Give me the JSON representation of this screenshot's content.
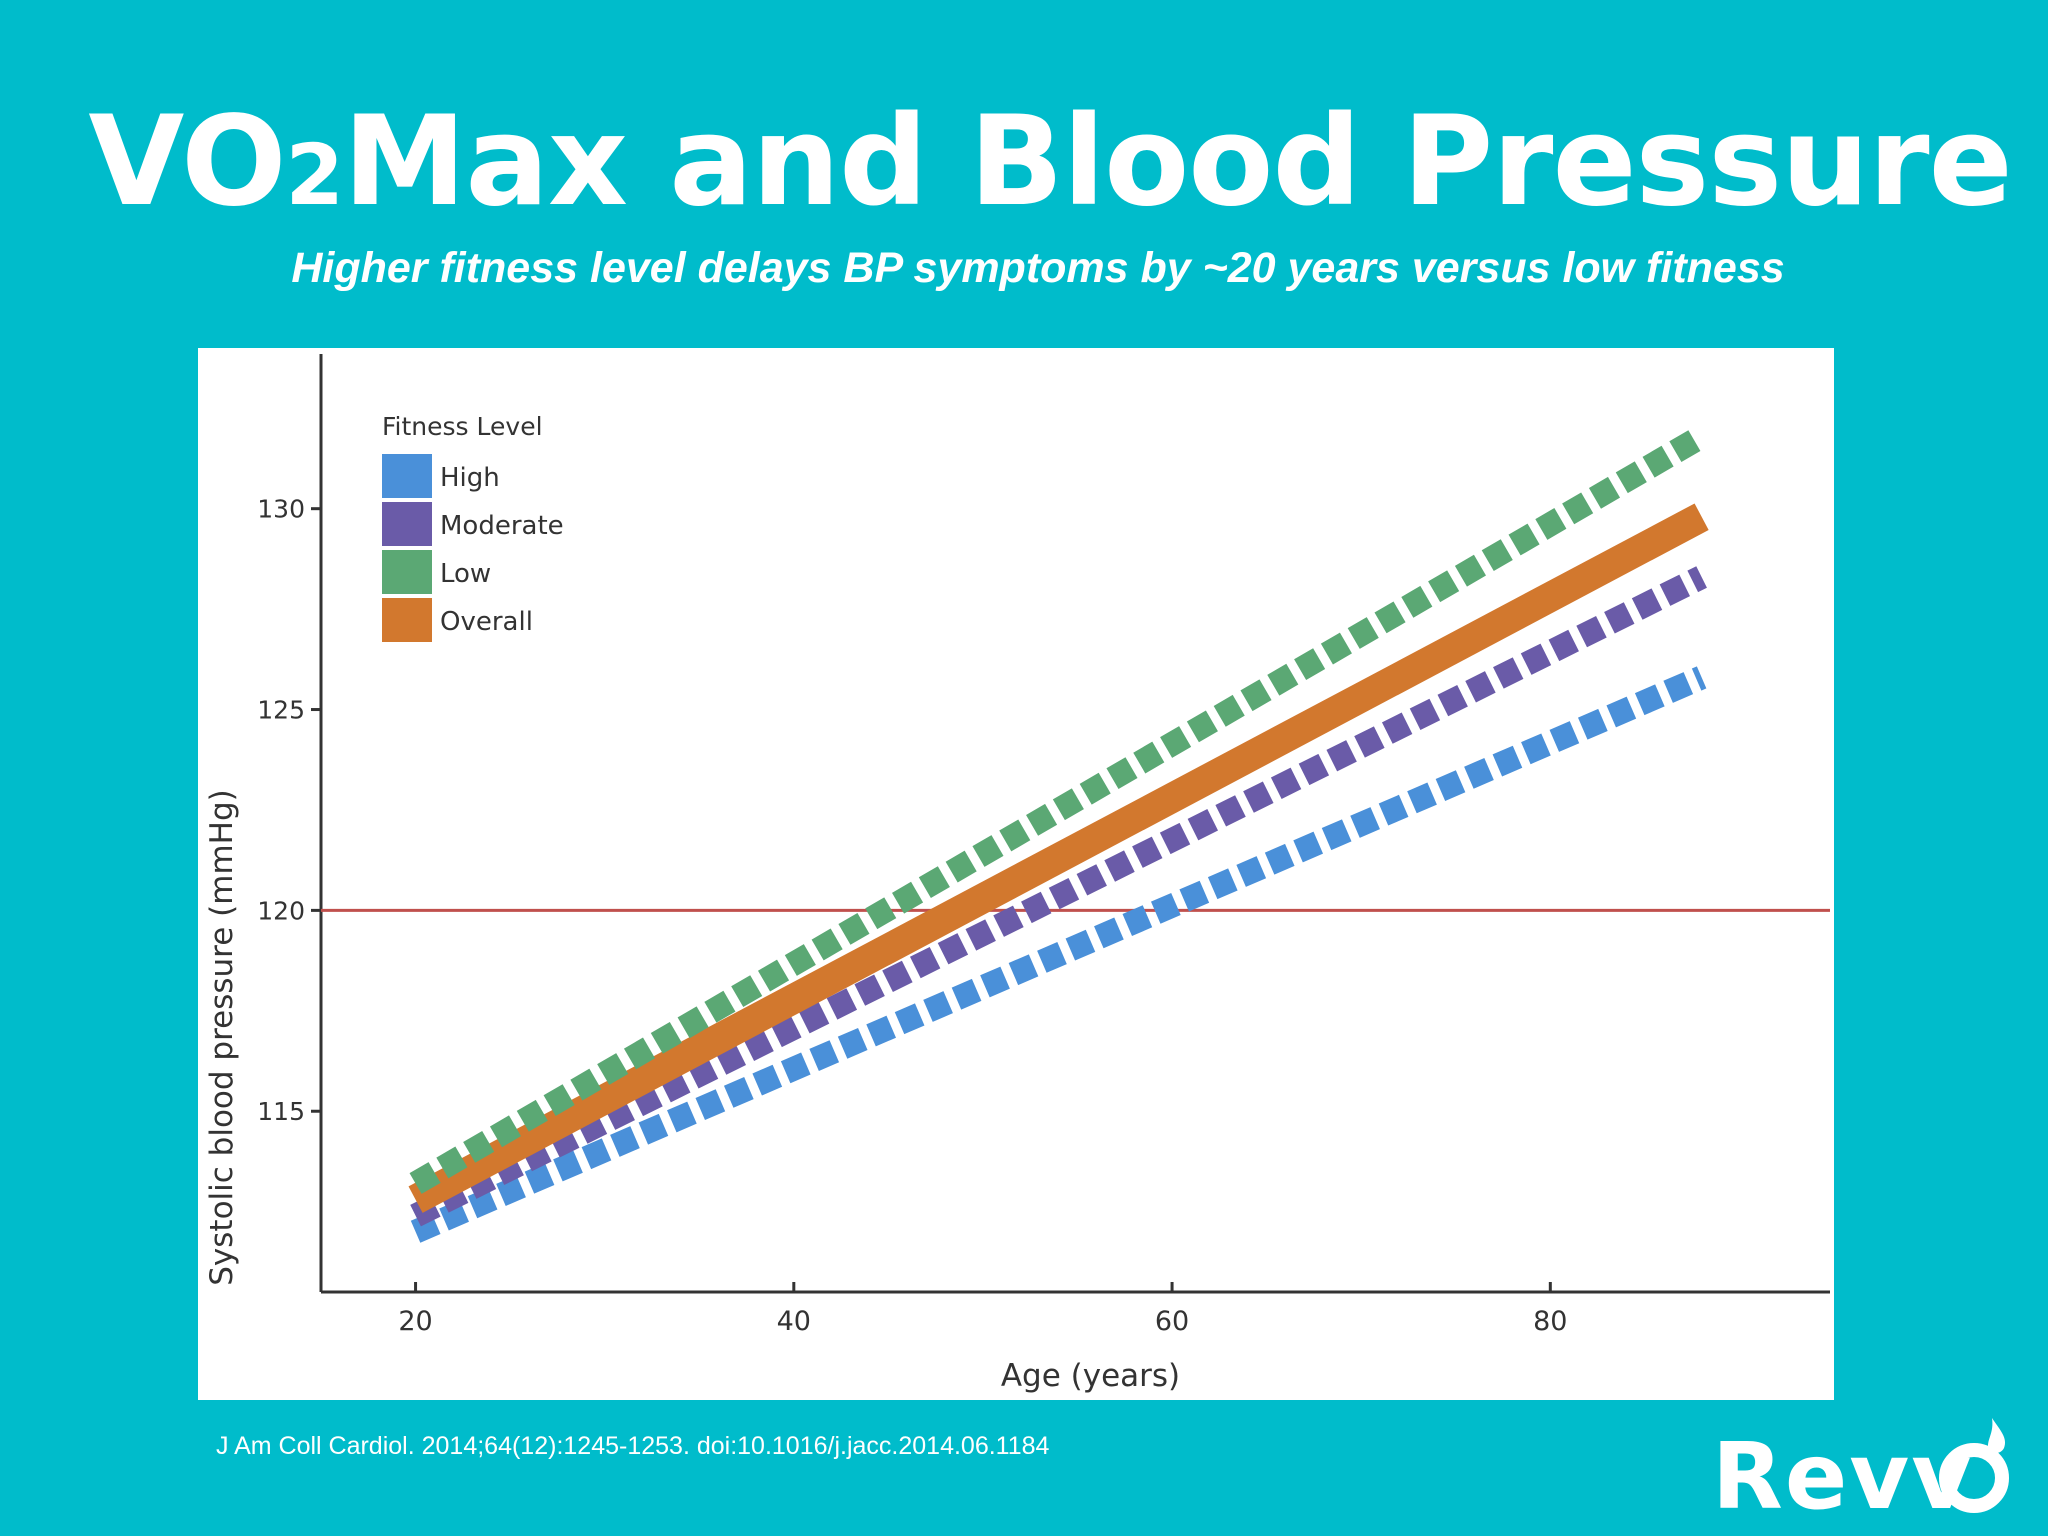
{
  "header": {
    "title_main": "VO",
    "title_sub": "2",
    "title_rest": "Max and Blood Pressure",
    "subtitle": "Higher fitness level delays BP symptoms by ~20 years versus low fitness"
  },
  "chart_data": {
    "type": "line",
    "xlabel": "Age (years)",
    "ylabel": "Systolic blood pressure (mmHg)",
    "xlim": [
      15,
      95
    ],
    "ylim": [
      110.5,
      134
    ],
    "xticks": [
      20,
      40,
      60,
      80
    ],
    "yticks": [
      115,
      120,
      125,
      130
    ],
    "reference_line": {
      "y": 120,
      "color": "#C0504D"
    },
    "legend": {
      "title": "Fitness Level",
      "position": "top-left"
    },
    "series": [
      {
        "name": "High",
        "color": "#4A90D9",
        "style": "dashed",
        "x": [
          20,
          88
        ],
        "y": [
          112.0,
          125.8
        ]
      },
      {
        "name": "Moderate",
        "color": "#6A5BA8",
        "style": "dashed",
        "x": [
          20,
          88
        ],
        "y": [
          112.4,
          128.3
        ]
      },
      {
        "name": "Low",
        "color": "#5BA874",
        "style": "dashed",
        "x": [
          20,
          88
        ],
        "y": [
          113.2,
          131.8
        ]
      },
      {
        "name": "Overall",
        "color": "#D2782E",
        "style": "solid",
        "x": [
          20,
          88
        ],
        "y": [
          112.8,
          129.8
        ]
      }
    ]
  },
  "footer": {
    "citation": "J Am Coll Cardiol. 2014;64(12):1245-1253. doi:10.1016/j.jacc.2014.06.1184"
  },
  "logo": {
    "text": "Revvō",
    "color": "#FFFFFF"
  }
}
